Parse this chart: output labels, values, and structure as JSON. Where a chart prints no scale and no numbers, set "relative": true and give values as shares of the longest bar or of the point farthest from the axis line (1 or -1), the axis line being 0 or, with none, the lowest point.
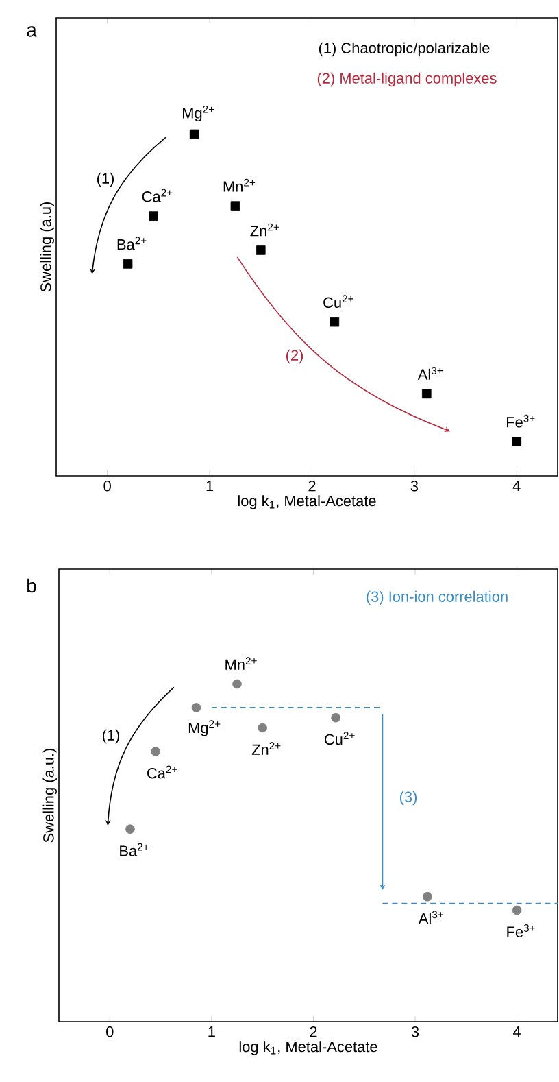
{
  "chart_data": [
    {
      "type": "scatter",
      "xlabel": "log k$_{1}$, Metal-Acetate",
      "ylabel": "Swelling (a.u)",
      "relative": true,
      "marker": "square",
      "xlim": [
        -0.5,
        4.4
      ],
      "xticks": [
        0,
        1,
        2,
        3,
        4
      ],
      "tick_labels": "x",
      "series": [
        {
          "color": "#000000",
          "x": [
            0.2,
            0.45,
            0.85,
            1.25,
            1.5,
            2.22,
            3.12,
            4.0
          ],
          "values": [
            0.62,
            0.76,
            1,
            0.79,
            0.66,
            0.45,
            0.24,
            0.1
          ]
        }
      ],
      "annotations": [
        "a",
        "(1) Chaotropic/polarizable",
        "(2) Metal-ligand complexes",
        "(1)",
        "(2)",
        {
          "text": "Ba$^{2+}$",
          "x": 0.2,
          "y": 0.62
        },
        {
          "text": "Ca$^{2+}$",
          "x": 0.45,
          "y": 0.76
        },
        {
          "text": "Mg$^{2+}$",
          "x": 0.85,
          "y": 1
        },
        {
          "text": "Mn$^{2+}$",
          "x": 1.25,
          "y": 0.79
        },
        {
          "text": "Zn$^{2+}$",
          "x": 1.5,
          "y": 0.66
        },
        {
          "text": "Cu$^{2+}$",
          "x": 2.22,
          "y": 0.45
        },
        {
          "text": "Al$^{3+}$",
          "x": 3.12,
          "y": 0.24
        },
        {
          "text": "Fe$^{3+}$",
          "x": 4.0,
          "y": 0.1
        }
      ]
    },
    {
      "type": "scatter",
      "xlabel": "log k$_{1}$, Metal-Acetate",
      "ylabel": "Swelling (a.u.)",
      "relative": true,
      "marker": "circle",
      "xlim": [
        -0.5,
        4.4
      ],
      "xticks": [
        0,
        1,
        2,
        3,
        4
      ],
      "tick_labels": "x",
      "series": [
        {
          "color": "#808080",
          "x": [
            0.2,
            0.45,
            0.85,
            1.25,
            1.5,
            2.22,
            3.12,
            4.0
          ],
          "values": [
            0.57,
            0.8,
            0.93,
            1,
            0.87,
            0.9,
            0.37,
            0.33
          ]
        },
        {
          "type": "line",
          "marker": "none",
          "line_style": "dashed",
          "color": "#3a8cc1",
          "x": [
            1.0,
            2.68
          ],
          "values": [
            0.93,
            0.93
          ]
        },
        {
          "type": "line",
          "marker": "none",
          "line_style": "dashed",
          "color": "#3a8cc1",
          "x": [
            2.68,
            4.4
          ],
          "values": [
            0.35,
            0.35
          ]
        }
      ],
      "annotations": [
        "b",
        "(3) Ion-ion correlation",
        "(1)",
        "(3)",
        {
          "text": "Mn$^{2+}$",
          "x": 1.25,
          "y": 1
        },
        {
          "text": "Mg$^{2+}$",
          "x": 0.85,
          "y": 0.93
        },
        {
          "text": "Zn$^{2+}$",
          "x": 1.5,
          "y": 0.87
        },
        {
          "text": "Cu$^{2+}$",
          "x": 2.22,
          "y": 0.9
        },
        {
          "text": "Ca$^{2+}$",
          "x": 0.45,
          "y": 0.8
        },
        {
          "text": "Ba$^{2+}$",
          "x": 0.2,
          "y": 0.57
        },
        {
          "text": "Al$^{3+}$",
          "x": 3.12,
          "y": 0.37
        },
        {
          "text": "Fe$^{3+}$",
          "x": 4.0,
          "y": 0.33
        }
      ]
    }
  ]
}
